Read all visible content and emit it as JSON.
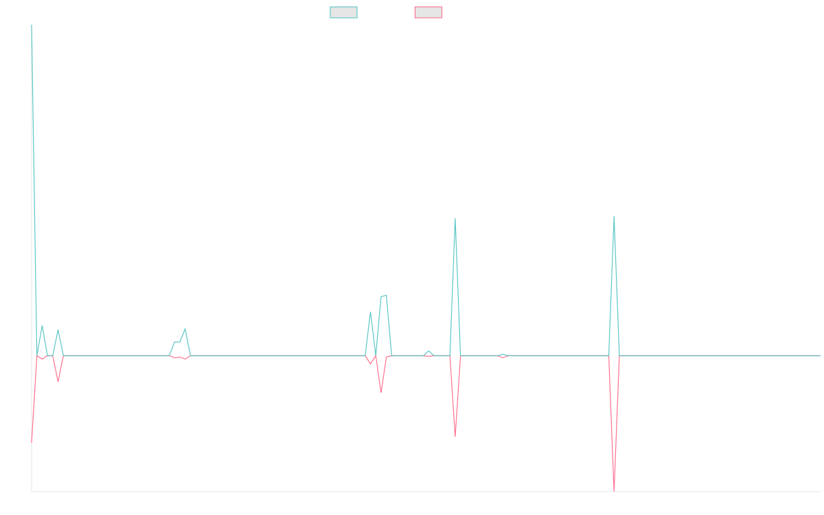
{
  "chart_data": {
    "type": "line",
    "ylim": [
      -198,
      482
    ],
    "series": [
      {
        "color": "#4bc0c0",
        "values": [
          482,
          0,
          44,
          0,
          0,
          38,
          0,
          0,
          0,
          0,
          0,
          0,
          0,
          0,
          0,
          0,
          0,
          0,
          0,
          0,
          0,
          0,
          0,
          0,
          0,
          0,
          0,
          20,
          20,
          39,
          0,
          0,
          0,
          0,
          0,
          0,
          0,
          0,
          0,
          0,
          0,
          0,
          0,
          0,
          0,
          0,
          0,
          0,
          0,
          0,
          0,
          0,
          0,
          0,
          0,
          0,
          0,
          0,
          0,
          0,
          0,
          0,
          0,
          0,
          64,
          0,
          86,
          88,
          0,
          0,
          0,
          0,
          0,
          0,
          0,
          7,
          0,
          0,
          0,
          0,
          200,
          0,
          0,
          0,
          0,
          0,
          0,
          0,
          0,
          2,
          0,
          0,
          0,
          0,
          0,
          0,
          0,
          0,
          0,
          0,
          0,
          0,
          0,
          0,
          0,
          0,
          0,
          0,
          0,
          0,
          203,
          0,
          0,
          0,
          0,
          0,
          0,
          0,
          0,
          0,
          0,
          0,
          0,
          0,
          0,
          0,
          0,
          0,
          0,
          0,
          0,
          0,
          0,
          0,
          0,
          0,
          0,
          0,
          0,
          0,
          0,
          0,
          0,
          0,
          0,
          0,
          0,
          0,
          0,
          0
        ]
      },
      {
        "color": "#ff6384",
        "values": [
          -127,
          0,
          -5,
          0,
          0,
          -38,
          0,
          0,
          0,
          0,
          0,
          0,
          0,
          0,
          0,
          0,
          0,
          0,
          0,
          0,
          0,
          0,
          0,
          0,
          0,
          0,
          0,
          -3,
          -2,
          -5,
          0,
          0,
          0,
          0,
          0,
          0,
          0,
          0,
          0,
          0,
          0,
          0,
          0,
          0,
          0,
          0,
          0,
          0,
          0,
          0,
          0,
          0,
          0,
          0,
          0,
          0,
          0,
          0,
          0,
          0,
          0,
          0,
          0,
          0,
          -12,
          0,
          -54,
          -2,
          0,
          0,
          0,
          0,
          0,
          0,
          0,
          -1,
          0,
          0,
          0,
          0,
          -118,
          0,
          0,
          0,
          0,
          0,
          0,
          0,
          0,
          -3,
          0,
          0,
          0,
          0,
          0,
          0,
          0,
          0,
          0,
          0,
          0,
          0,
          0,
          0,
          0,
          0,
          0,
          0,
          0,
          0,
          -198,
          0,
          0,
          0,
          0,
          0,
          0,
          0,
          0,
          0,
          0,
          0,
          0,
          0,
          0,
          0,
          0,
          0,
          0,
          0,
          0,
          0,
          0,
          0,
          0,
          0,
          0,
          0,
          0,
          0,
          0,
          0,
          0,
          0,
          0,
          0,
          0,
          0,
          0,
          0
        ]
      }
    ]
  }
}
